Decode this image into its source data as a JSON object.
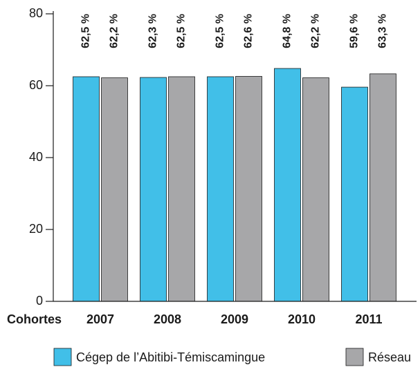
{
  "chart_data": {
    "type": "bar",
    "x_label": "Cohortes",
    "categories": [
      "2007",
      "2008",
      "2009",
      "2010",
      "2011"
    ],
    "series": [
      {
        "name": "Cégep de l’Abitibi-Témiscamingue",
        "color": "#41bfe8",
        "values": [
          62.5,
          62.3,
          62.5,
          64.8,
          59.6
        ],
        "value_labels": [
          "62,5 %",
          "62,3 %",
          "62,5 %",
          "64,8 %",
          "59,6 %"
        ]
      },
      {
        "name": "Réseau",
        "color": "#a7a7a9",
        "values": [
          62.2,
          62.5,
          62.6,
          62.2,
          63.3
        ],
        "value_labels": [
          "62,2 %",
          "62,5 %",
          "62,6 %",
          "62,2 %",
          "63,3 %"
        ]
      }
    ],
    "ylim": [
      0,
      80
    ],
    "yticks": [
      0,
      20,
      40,
      60,
      80
    ],
    "grid": false
  }
}
